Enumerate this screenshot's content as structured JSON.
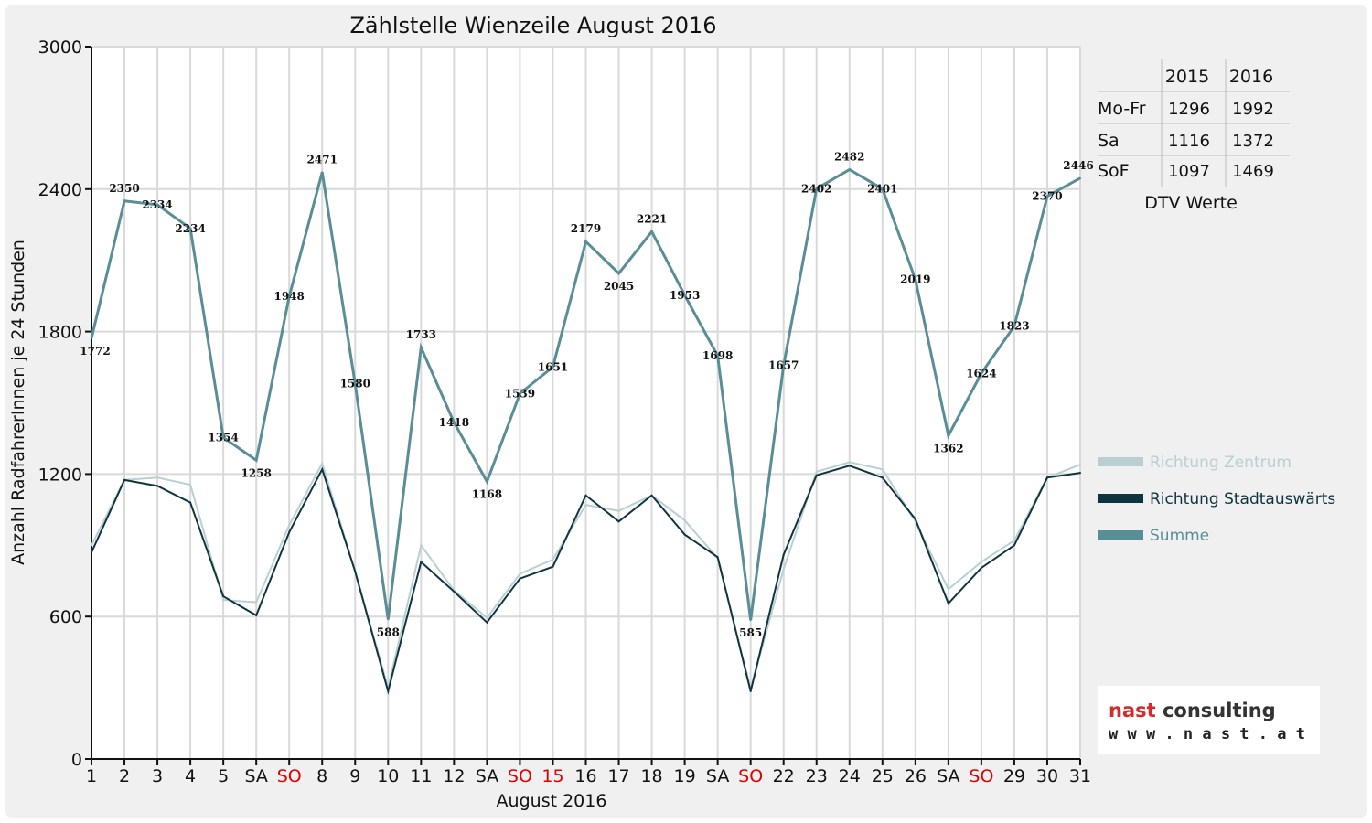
{
  "chart_data": {
    "type": "line",
    "title": "Zählstelle Wienzeile August 2016",
    "xlabel": "August 2016",
    "ylabel": "Anzahl RadfahrerInnen je 24 Stunden",
    "ylim": [
      0,
      3000
    ],
    "yticks": [
      0,
      600,
      1200,
      1800,
      2400,
      3000
    ],
    "categories": [
      "1",
      "2",
      "3",
      "4",
      "5",
      "SA",
      "SO",
      "8",
      "9",
      "10",
      "11",
      "12",
      "SA",
      "SO",
      "15",
      "16",
      "17",
      "18",
      "19",
      "SA",
      "SO",
      "22",
      "23",
      "24",
      "25",
      "26",
      "SA",
      "SO",
      "29",
      "30",
      "31"
    ],
    "red_categories": [
      6,
      13,
      14,
      20,
      27
    ],
    "grid": true,
    "legend_position": "right",
    "series": [
      {
        "name": "Richtung Zentrum",
        "color": "#b8d0d2",
        "values": [
          900,
          1175,
          1185,
          1155,
          670,
          660,
          985,
          1245,
          790,
          300,
          900,
          710,
          595,
          780,
          840,
          1070,
          1045,
          1110,
          1005,
          845,
          295,
          800,
          1210,
          1250,
          1220,
          1000,
          715,
          830,
          920,
          1185,
          1240
        ]
      },
      {
        "name": "Richtung Stadtauswärts",
        "color": "#0f3440",
        "values": [
          870,
          1175,
          1150,
          1080,
          685,
          605,
          955,
          1220,
          790,
          285,
          830,
          705,
          575,
          760,
          810,
          1110,
          1000,
          1110,
          945,
          850,
          285,
          860,
          1195,
          1235,
          1185,
          1010,
          655,
          805,
          900,
          1185,
          1205
        ]
      },
      {
        "name": "Summe",
        "color": "#5a8e97",
        "values": [
          1772,
          2350,
          2334,
          2234,
          1354,
          1258,
          1948,
          2471,
          1580,
          588,
          1733,
          1418,
          1168,
          1539,
          1651,
          2179,
          2045,
          2221,
          1953,
          1698,
          585,
          1657,
          2402,
          2482,
          2401,
          2019,
          1362,
          1624,
          1823,
          2370,
          2446
        ]
      }
    ],
    "data_labels": [
      "1772",
      "2350",
      "2334",
      "2234",
      "1354",
      "1258",
      "1948",
      "2471",
      "1580",
      "588",
      "1733",
      "1418",
      "1168",
      "1539",
      "1651",
      "2179",
      "2045",
      "2221",
      "1953",
      "1698",
      "585",
      "1657",
      "2402",
      "2482",
      "2401",
      "2019",
      "1362",
      "1624",
      "1823",
      "2370",
      "2446"
    ]
  },
  "dtv_table": {
    "headers": [
      "",
      "2015",
      "2016"
    ],
    "rows": [
      {
        "label": "Mo-Fr",
        "v2015": "1296",
        "v2016": "1992"
      },
      {
        "label": "Sa",
        "v2015": "1116",
        "v2016": "1372"
      },
      {
        "label": "SoF",
        "v2015": "1097",
        "v2016": "1469"
      }
    ],
    "caption": "DTV Werte"
  },
  "logo": {
    "word1": "nast",
    "word2": "consulting",
    "url": "w w w . n a s t . a t",
    "red": "#d22b2b",
    "dark": "#333333"
  },
  "colors": {
    "axis": "#111111",
    "grid": "#d9d9d9",
    "weekend": "#e00000"
  }
}
